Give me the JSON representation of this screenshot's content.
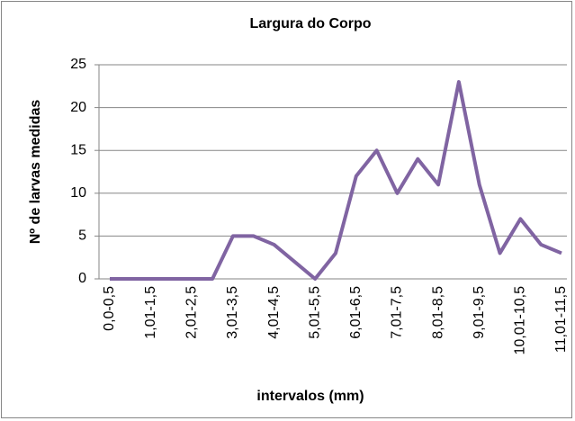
{
  "chart_data": {
    "type": "line",
    "title": "Largura do Corpo",
    "x_label": "intervalos (mm)",
    "y_label": "Nº de larvas medidas",
    "categories": [
      "0,0-0,5",
      null,
      "1,01-1,5",
      null,
      "2,01-2,5",
      null,
      "3,01-3,5",
      null,
      "4,01-4,5",
      null,
      "5,01-5,5",
      null,
      "6,01-6,5",
      null,
      "7,01-7,5",
      null,
      "8,01-8,5",
      null,
      "9,01-9,5",
      null,
      "10,01-10,5",
      null,
      "11,01-11,5"
    ],
    "series": [
      {
        "color": "#8064a2",
        "values": [
          0,
          0,
          0,
          0,
          0,
          0,
          5,
          5,
          4,
          2,
          0,
          3,
          12,
          15,
          10,
          14,
          11,
          23,
          11,
          3,
          7,
          4,
          3
        ]
      }
    ],
    "ylim": [
      0,
      25
    ],
    "yticks": [
      0,
      5,
      10,
      15,
      20,
      25
    ],
    "grid": true
  }
}
